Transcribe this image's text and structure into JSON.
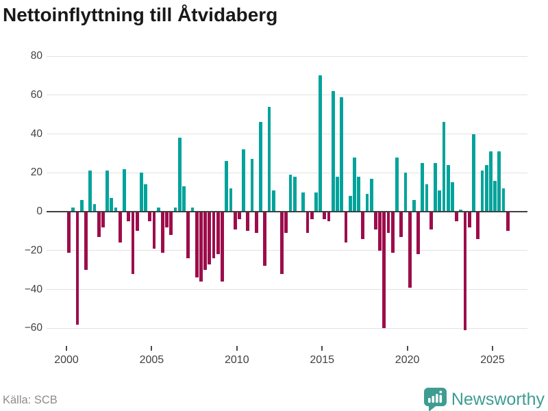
{
  "title": "Nettoinflyttning till Åtvidaberg",
  "source": "Källa: SCB",
  "branding": {
    "name": "Newsworthy"
  },
  "colors": {
    "positive": "#00a39b",
    "negative": "#9d0d4b",
    "grid": "#e1e1e1",
    "zero_line": "#3f3f3f",
    "axis_text": "#404040",
    "title_text": "#191919",
    "source_text": "#8c8c8c",
    "brand_teal": "#3f9c92"
  },
  "chart_data": {
    "type": "bar",
    "title": "Nettoinflyttning till Åtvidaberg",
    "xlabel": "",
    "ylabel": "",
    "frequency": "quarterly",
    "start_period": "2000-Q1",
    "end_period": "2025-Q4",
    "x_tick_labels": [
      "2000",
      "2005",
      "2010",
      "2015",
      "2020",
      "2025"
    ],
    "y_ticks": [
      80,
      60,
      40,
      20,
      0,
      -20,
      -40,
      -60
    ],
    "y_tick_labels": [
      "80",
      "60",
      "40",
      "20",
      "0",
      "−20",
      "−40",
      "−60"
    ],
    "ylim": [
      -70,
      85
    ],
    "grid": "horizontal",
    "legend": "none",
    "values": [
      -21,
      2,
      -58,
      6,
      -30,
      21,
      4,
      -13,
      -8,
      21,
      7,
      2,
      -16,
      22,
      -5,
      -32,
      -10,
      20,
      14,
      -5,
      -19,
      2,
      -21,
      -8,
      -12,
      2,
      38,
      13,
      -24,
      2,
      -34,
      -36,
      -30,
      -27,
      -24,
      -22,
      -36,
      26,
      12,
      -9,
      -4,
      32,
      -10,
      27,
      -11,
      46,
      -28,
      54,
      11,
      0,
      -32,
      -11,
      19,
      18,
      0,
      10,
      -11,
      -4,
      10,
      70,
      -4,
      -5,
      62,
      18,
      59,
      -16,
      8,
      28,
      18,
      -14,
      9,
      17,
      -9,
      -20,
      -60,
      -11,
      -21,
      28,
      -13,
      20,
      -39,
      6,
      -22,
      25,
      14,
      -9,
      25,
      11,
      46,
      24,
      15,
      -5,
      1,
      -61,
      -8,
      40,
      -14,
      21,
      24,
      31,
      16,
      31,
      12,
      -10
    ]
  }
}
